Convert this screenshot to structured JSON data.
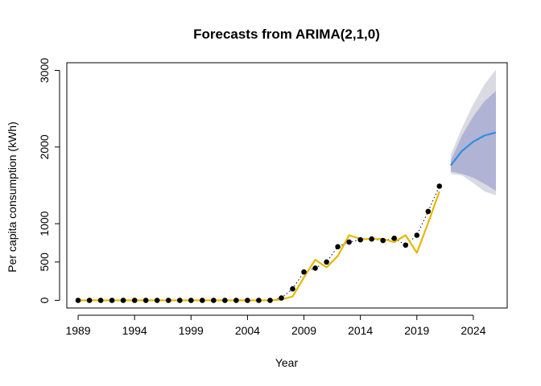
{
  "chart_data": {
    "type": "line",
    "title": "Forecasts from ARIMA(2,1,0)",
    "xlabel": "Year",
    "ylabel": "Per capita consumption (kWh)",
    "xlim": [
      1988,
      2027
    ],
    "ylim": [
      -100,
      3100
    ],
    "x_ticks": [
      1989,
      1994,
      1999,
      2004,
      2009,
      2014,
      2019,
      2024
    ],
    "x_tick_labels": [
      "1989",
      "1994",
      "1999",
      "2004",
      "2009",
      "2014",
      "2019",
      "2024"
    ],
    "y_ticks": [
      0,
      500,
      1000,
      2000,
      3000
    ],
    "y_tick_labels": [
      "0",
      "500",
      "1000",
      "2000",
      "3000"
    ],
    "grid": false,
    "legend": "none",
    "colors": {
      "observed": "#000000",
      "fitted": "#e6b800",
      "forecast": "#2b90e0",
      "band80": "#b0b3d4",
      "band95": "#dadae2"
    },
    "observed": {
      "x": [
        1989,
        1990,
        1991,
        1992,
        1993,
        1994,
        1995,
        1996,
        1997,
        1998,
        1999,
        2000,
        2001,
        2002,
        2003,
        2004,
        2005,
        2006,
        2007,
        2008,
        2009,
        2010,
        2011,
        2012,
        2013,
        2014,
        2015,
        2016,
        2017,
        2018,
        2019,
        2020,
        2021
      ],
      "y": [
        0,
        0,
        0,
        0,
        0,
        0,
        0,
        0,
        0,
        0,
        0,
        0,
        0,
        0,
        0,
        0,
        0,
        0,
        30,
        150,
        370,
        420,
        500,
        700,
        760,
        790,
        800,
        780,
        810,
        720,
        850,
        1160,
        1490
      ]
    },
    "fitted": {
      "x": [
        1989,
        1990,
        1991,
        1992,
        1993,
        1994,
        1995,
        1996,
        1997,
        1998,
        1999,
        2000,
        2001,
        2002,
        2003,
        2004,
        2005,
        2006,
        2007,
        2008,
        2009,
        2010,
        2011,
        2012,
        2013,
        2014,
        2015,
        2016,
        2017,
        2018,
        2019,
        2020,
        2021
      ],
      "y": [
        0,
        0,
        0,
        0,
        0,
        0,
        0,
        0,
        0,
        0,
        0,
        0,
        0,
        0,
        0,
        0,
        0,
        0,
        10,
        50,
        300,
        530,
        430,
        580,
        850,
        800,
        800,
        800,
        760,
        850,
        620,
        1010,
        1420
      ]
    },
    "forecast": {
      "x": [
        2022,
        2023,
        2024,
        2025,
        2026
      ],
      "mean": [
        1760,
        1950,
        2070,
        2150,
        2190
      ],
      "lo80": [
        1680,
        1650,
        1600,
        1520,
        1430
      ],
      "hi80": [
        1820,
        2150,
        2400,
        2600,
        2730
      ],
      "lo95": [
        1650,
        1630,
        1530,
        1420,
        1370
      ],
      "hi95": [
        1900,
        2250,
        2560,
        2820,
        3010
      ]
    }
  }
}
